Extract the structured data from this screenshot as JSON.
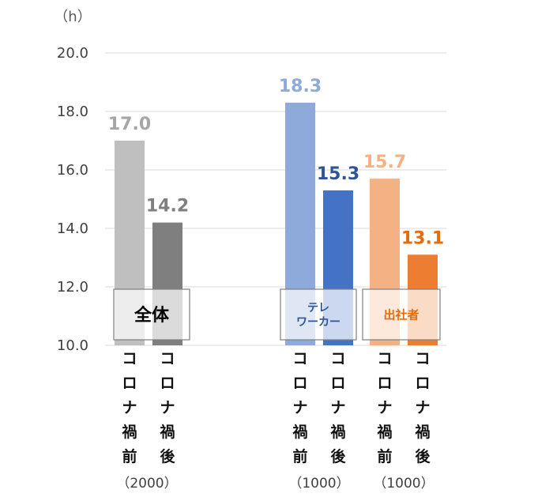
{
  "chart_data": {
    "type": "bar",
    "ylabel": "（h）",
    "ylim": [
      10.0,
      20.0
    ],
    "yticks": [
      "10.0",
      "12.0",
      "14.0",
      "16.0",
      "18.0",
      "20.0"
    ],
    "grid": true,
    "groups": [
      {
        "label": "全体",
        "count": "（2000）",
        "bars": [
          {
            "category": "コロナ禍前",
            "value": 17.0,
            "label": "17.0",
            "color": "#bfbfbf",
            "label_color": "#a6a6a6"
          },
          {
            "category": "コロナ禍後",
            "value": 14.2,
            "label": "14.2",
            "color": "#7f7f7f",
            "label_color": "#7f7f7f"
          }
        ]
      },
      {
        "label": "テレ\nワーカー",
        "count": "（1000）",
        "bars": [
          {
            "category": "コロナ禍前",
            "value": 18.3,
            "label": "18.3",
            "color": "#8eaadb",
            "label_color": "#8eaadb"
          },
          {
            "category": "コロナ禍後",
            "value": 15.3,
            "label": "15.3",
            "color": "#4472c4",
            "label_color": "#2f5597"
          }
        ]
      },
      {
        "label": "出社者",
        "count": "（1000）",
        "bars": [
          {
            "category": "コロナ禍前",
            "value": 15.7,
            "label": "15.7",
            "color": "#f4b183",
            "label_color": "#f4b183"
          },
          {
            "category": "コロナ禍後",
            "value": 13.1,
            "label": "13.1",
            "color": "#ed7d31",
            "label_color": "#e46c0a"
          }
        ]
      }
    ]
  }
}
